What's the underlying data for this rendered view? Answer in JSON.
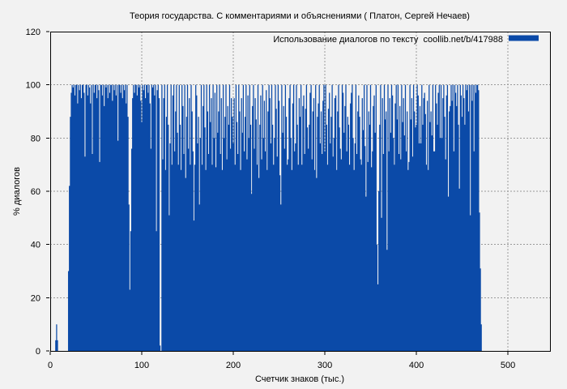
{
  "window": {
    "background": "#f2f2f2"
  },
  "colors": {
    "grid": "#9a9a9a",
    "border": "#000000",
    "text": "#000000",
    "series_blue": "#0b4aa8"
  },
  "legend": {
    "position": "top-right",
    "swatch_color": "#0b4aa8"
  },
  "chart_data": {
    "type": "bar",
    "style": "impulses",
    "title": "Теория государства. С комментариями и объяснениями ( Платон, Сергей Нечаев)",
    "xlabel": "Счетчик знаков (тыс.)",
    "ylabel": "% диалогов",
    "xlim": [
      0,
      546
    ],
    "ylim": [
      0,
      120
    ],
    "x_ticks": [
      0,
      100,
      200,
      300,
      400,
      500
    ],
    "y_ticks": [
      0,
      20,
      40,
      60,
      80,
      100,
      120
    ],
    "grid": true,
    "legend_position": "top-right",
    "series": [
      {
        "name": "Использование диалогов по тексту  coollib.net/b/417988",
        "color": "#0b4aa8",
        "x_start": 20,
        "x_step": 1,
        "extra_points": [
          [
            6,
            4
          ],
          [
            7,
            10
          ],
          [
            8,
            4
          ]
        ],
        "values": [
          30,
          62,
          88,
          97,
          100,
          99,
          100,
          96,
          100,
          100,
          93,
          100,
          98,
          100,
          95,
          100,
          100,
          97,
          73,
          100,
          100,
          96,
          100,
          99,
          93,
          100,
          74,
          100,
          97,
          100,
          100,
          95,
          100,
          98,
          71,
          100,
          100,
          96,
          100,
          92,
          100,
          99,
          100,
          95,
          100,
          97,
          100,
          100,
          94,
          100,
          98,
          100,
          96,
          100,
          79,
          100,
          100,
          97,
          100,
          95,
          100,
          98,
          100,
          93,
          100,
          88,
          55,
          23,
          45,
          76,
          95,
          100,
          97,
          100,
          100,
          96,
          100,
          99,
          100,
          94,
          86,
          100,
          98,
          100,
          95,
          100,
          100,
          97,
          100,
          93,
          76,
          100,
          99,
          100,
          96,
          100,
          45,
          98,
          100,
          95,
          2,
          0,
          100,
          72,
          95,
          100,
          68,
          88,
          100,
          85,
          51,
          78,
          100,
          70,
          96,
          100,
          75,
          90,
          100,
          82,
          70,
          100,
          85,
          68,
          100,
          92,
          74,
          100,
          65,
          88,
          100,
          76,
          95,
          70,
          100,
          90,
          75,
          49,
          70,
          100,
          96,
          78,
          88,
          55,
          80,
          100,
          70,
          92,
          100,
          84,
          68,
          100,
          90,
          74,
          100,
          86,
          95,
          70,
          100,
          80,
          97,
          69,
          100,
          82,
          90,
          100,
          74,
          95,
          68,
          100,
          80,
          88,
          100,
          72,
          92,
          85,
          100,
          76,
          95,
          88,
          78,
          95,
          70,
          100,
          86,
          74,
          100,
          90,
          68,
          95,
          82,
          100,
          75,
          88,
          100,
          72,
          96,
          80,
          100,
          85,
          59,
          92,
          100,
          76,
          95,
          87,
          70,
          100,
          65,
          85,
          96,
          72,
          100,
          80,
          94,
          75,
          98,
          68,
          90,
          100,
          95,
          78,
          100,
          85,
          70,
          80,
          100,
          91,
          73,
          100,
          94,
          66,
          55,
          100,
          82,
          92,
          76,
          100,
          88,
          70,
          72,
          95,
          100,
          80,
          68,
          93,
          100,
          75,
          78,
          100,
          85,
          70,
          95,
          88,
          100,
          70,
          92,
          96,
          74,
          91,
          100,
          84,
          76,
          85,
          97,
          100,
          72,
          90,
          95,
          68,
          100,
          65,
          88,
          93,
          100,
          78,
          90,
          74,
          94,
          100,
          75,
          100,
          85,
          70,
          91,
          97,
          78,
          88,
          100,
          73,
          80,
          95,
          96,
          68,
          90,
          100,
          84,
          76,
          72,
          100,
          97,
          82,
          92,
          100,
          75,
          88,
          85,
          70,
          93,
          97,
          100,
          80,
          68,
          78,
          100,
          74,
          90,
          96,
          88,
          72,
          70,
          95,
          83,
          100,
          77,
          58,
          100,
          71,
          90,
          85,
          100,
          69,
          75,
          92,
          96,
          82,
          100,
          40,
          25,
          60,
          85,
          100,
          50,
          95,
          74,
          100,
          87,
          90,
          38,
          100,
          75,
          95,
          82,
          100,
          96,
          80,
          70,
          93,
          100,
          87,
          100,
          74,
          92,
          72,
          100,
          86,
          95,
          81,
          100,
          75,
          90,
          68,
          71,
          100,
          87,
          95,
          73,
          100,
          90,
          84,
          85,
          100,
          96,
          78,
          92,
          78,
          100,
          85,
          95,
          97,
          89,
          70,
          94,
          68,
          100,
          86,
          90,
          81,
          100,
          75,
          75,
          100,
          93,
          85,
          97,
          100,
          80,
          100,
          80,
          95,
          100,
          88,
          72,
          96,
          100,
          58,
          90,
          92,
          100,
          94,
          100,
          75,
          100,
          97,
          92,
          100,
          85,
          61,
          100,
          96,
          88,
          100,
          95,
          85,
          100,
          98,
          100,
          90,
          100,
          51,
          100,
          94,
          100,
          75,
          100,
          97,
          100,
          100,
          98,
          52,
          31,
          10
        ]
      }
    ]
  }
}
